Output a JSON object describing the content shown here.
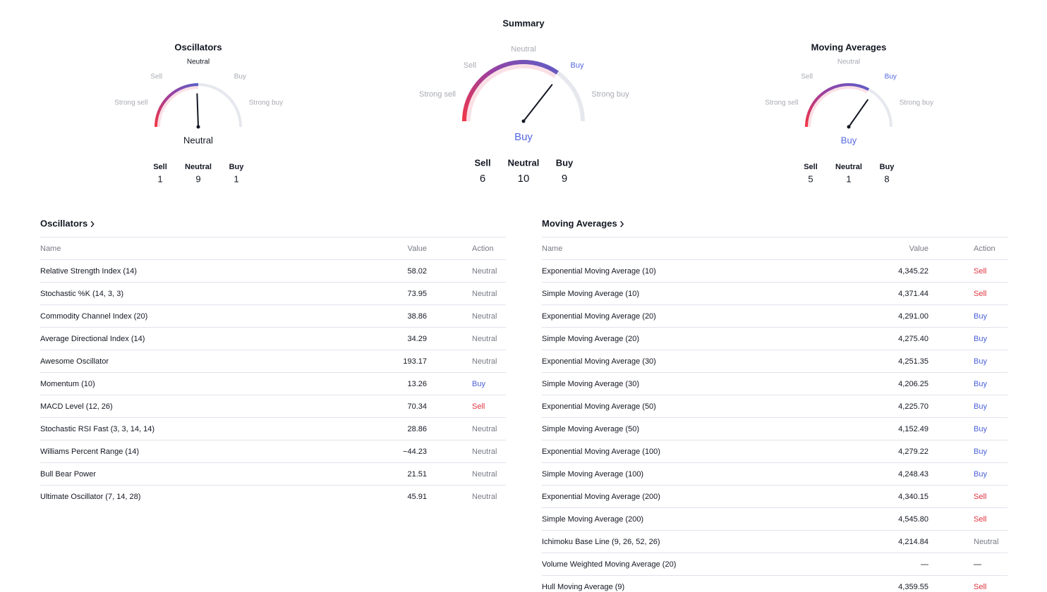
{
  "summary_gauge": {
    "title": "Summary",
    "reading": "Buy",
    "reading_color": "#5468e0",
    "labels": [
      "Strong sell",
      "Sell",
      "Neutral",
      "Buy",
      "Strong buy"
    ],
    "counts": [
      {
        "label": "Sell",
        "value": 6
      },
      {
        "label": "Neutral",
        "value": 10
      },
      {
        "label": "Buy",
        "value": 9
      }
    ]
  },
  "oscillators_gauge": {
    "title": "Oscillators",
    "reading": "Neutral",
    "reading_color": "#131722",
    "labels": [
      "Strong sell",
      "Sell",
      "Neutral",
      "Buy",
      "Strong buy"
    ],
    "counts": [
      {
        "label": "Sell",
        "value": 1
      },
      {
        "label": "Neutral",
        "value": 9
      },
      {
        "label": "Buy",
        "value": 1
      }
    ]
  },
  "moving_averages_gauge": {
    "title": "Moving Averages",
    "reading": "Buy",
    "reading_color": "#5468e0",
    "labels": [
      "Strong sell",
      "Sell",
      "Neutral",
      "Buy",
      "Strong buy"
    ],
    "counts": [
      {
        "label": "Sell",
        "value": 5
      },
      {
        "label": "Neutral",
        "value": 1
      },
      {
        "label": "Buy",
        "value": 8
      }
    ]
  },
  "oscillators_table": {
    "title": "Oscillators",
    "columns": [
      "Name",
      "Value",
      "Action"
    ],
    "rows": [
      {
        "name": "Relative Strength Index (14)",
        "value": "58.02",
        "action": "Neutral",
        "color": "#787b86"
      },
      {
        "name": "Stochastic %K (14, 3, 3)",
        "value": "73.95",
        "action": "Neutral",
        "color": "#787b86"
      },
      {
        "name": "Commodity Channel Index (20)",
        "value": "38.86",
        "action": "Neutral",
        "color": "#787b86"
      },
      {
        "name": "Average Directional Index (14)",
        "value": "34.29",
        "action": "Neutral",
        "color": "#787b86"
      },
      {
        "name": "Awesome Oscillator",
        "value": "193.17",
        "action": "Neutral",
        "color": "#787b86"
      },
      {
        "name": "Momentum (10)",
        "value": "13.26",
        "action": "Buy",
        "color": "#4a5fd8"
      },
      {
        "name": "MACD Level (12, 26)",
        "value": "70.34",
        "action": "Sell",
        "color": "#e0333f"
      },
      {
        "name": "Stochastic RSI Fast (3, 3, 14, 14)",
        "value": "28.86",
        "action": "Neutral",
        "color": "#787b86"
      },
      {
        "name": "Williams Percent Range (14)",
        "value": "−44.23",
        "action": "Neutral",
        "color": "#787b86"
      },
      {
        "name": "Bull Bear Power",
        "value": "21.51",
        "action": "Neutral",
        "color": "#787b86"
      },
      {
        "name": "Ultimate Oscillator (7, 14, 28)",
        "value": "45.91",
        "action": "Neutral",
        "color": "#787b86"
      }
    ]
  },
  "moving_averages_table": {
    "title": "Moving Averages",
    "columns": [
      "Name",
      "Value",
      "Action"
    ],
    "rows": [
      {
        "name": "Exponential Moving Average (10)",
        "value": "4,345.22",
        "action": "Sell",
        "color": "#e0333f"
      },
      {
        "name": "Simple Moving Average (10)",
        "value": "4,371.44",
        "action": "Sell",
        "color": "#e0333f"
      },
      {
        "name": "Exponential Moving Average (20)",
        "value": "4,291.00",
        "action": "Buy",
        "color": "#4a5fd8"
      },
      {
        "name": "Simple Moving Average (20)",
        "value": "4,275.40",
        "action": "Buy",
        "color": "#4a5fd8"
      },
      {
        "name": "Exponential Moving Average (30)",
        "value": "4,251.35",
        "action": "Buy",
        "color": "#4a5fd8"
      },
      {
        "name": "Simple Moving Average (30)",
        "value": "4,206.25",
        "action": "Buy",
        "color": "#4a5fd8"
      },
      {
        "name": "Exponential Moving Average (50)",
        "value": "4,225.70",
        "action": "Buy",
        "color": "#4a5fd8"
      },
      {
        "name": "Simple Moving Average (50)",
        "value": "4,152.49",
        "action": "Buy",
        "color": "#4a5fd8"
      },
      {
        "name": "Exponential Moving Average (100)",
        "value": "4,279.22",
        "action": "Buy",
        "color": "#4a5fd8"
      },
      {
        "name": "Simple Moving Average (100)",
        "value": "4,248.43",
        "action": "Buy",
        "color": "#4a5fd8"
      },
      {
        "name": "Exponential Moving Average (200)",
        "value": "4,340.15",
        "action": "Sell",
        "color": "#e0333f"
      },
      {
        "name": "Simple Moving Average (200)",
        "value": "4,545.80",
        "action": "Sell",
        "color": "#e0333f"
      },
      {
        "name": "Ichimoku Base Line (9, 26, 52, 26)",
        "value": "4,214.84",
        "action": "Neutral",
        "color": "#787b86"
      },
      {
        "name": "Volume Weighted Moving Average (20)",
        "value": "—",
        "action": "—",
        "color": "#131722"
      },
      {
        "name": "Hull Moving Average (9)",
        "value": "4,359.55",
        "action": "Sell",
        "color": "#e0333f"
      }
    ]
  }
}
